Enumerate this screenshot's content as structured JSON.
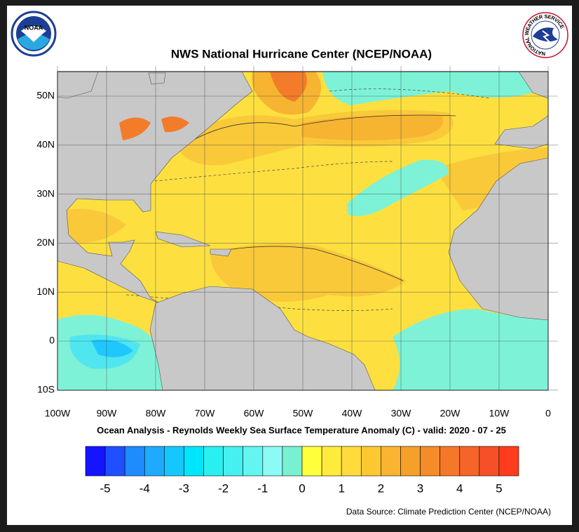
{
  "header": {
    "title": "NWS National Hurricane Center (NCEP/NOAA)"
  },
  "logos": {
    "noaa": "NOAA",
    "nws": "NATIONAL WEATHER SERVICE"
  },
  "map": {
    "lat_labels": [
      "50N",
      "40N",
      "30N",
      "20N",
      "10N",
      "0",
      "10S"
    ],
    "lon_labels": [
      "100W",
      "90W",
      "80W",
      "70W",
      "60W",
      "50W",
      "40W",
      "30W",
      "20W",
      "10W",
      "0"
    ],
    "caption": "Ocean Analysis - Reynolds Weekly Sea Surface Temperature Anomaly (C) - valid: 2020 - 07 - 25"
  },
  "colorbar": {
    "colors": [
      "#1414ff",
      "#1e50ff",
      "#1e8cff",
      "#1eaaff",
      "#14c8ff",
      "#00e6ff",
      "#28f0f0",
      "#46f0f0",
      "#64f5f0",
      "#8cfaf5",
      "#78f0d2",
      "#ffff3c",
      "#ffeb3c",
      "#ffdc3c",
      "#fcc832",
      "#fab432",
      "#f5a028",
      "#f58c28",
      "#f57828",
      "#f56428",
      "#f55028",
      "#ff3c1e"
    ],
    "labels": [
      -5,
      -4,
      -3,
      -2,
      -1,
      0,
      1,
      2,
      3,
      4,
      5
    ]
  },
  "footer": {
    "source": "Data Source: Climate Prediction Center (NCEP/NOAA)"
  }
}
